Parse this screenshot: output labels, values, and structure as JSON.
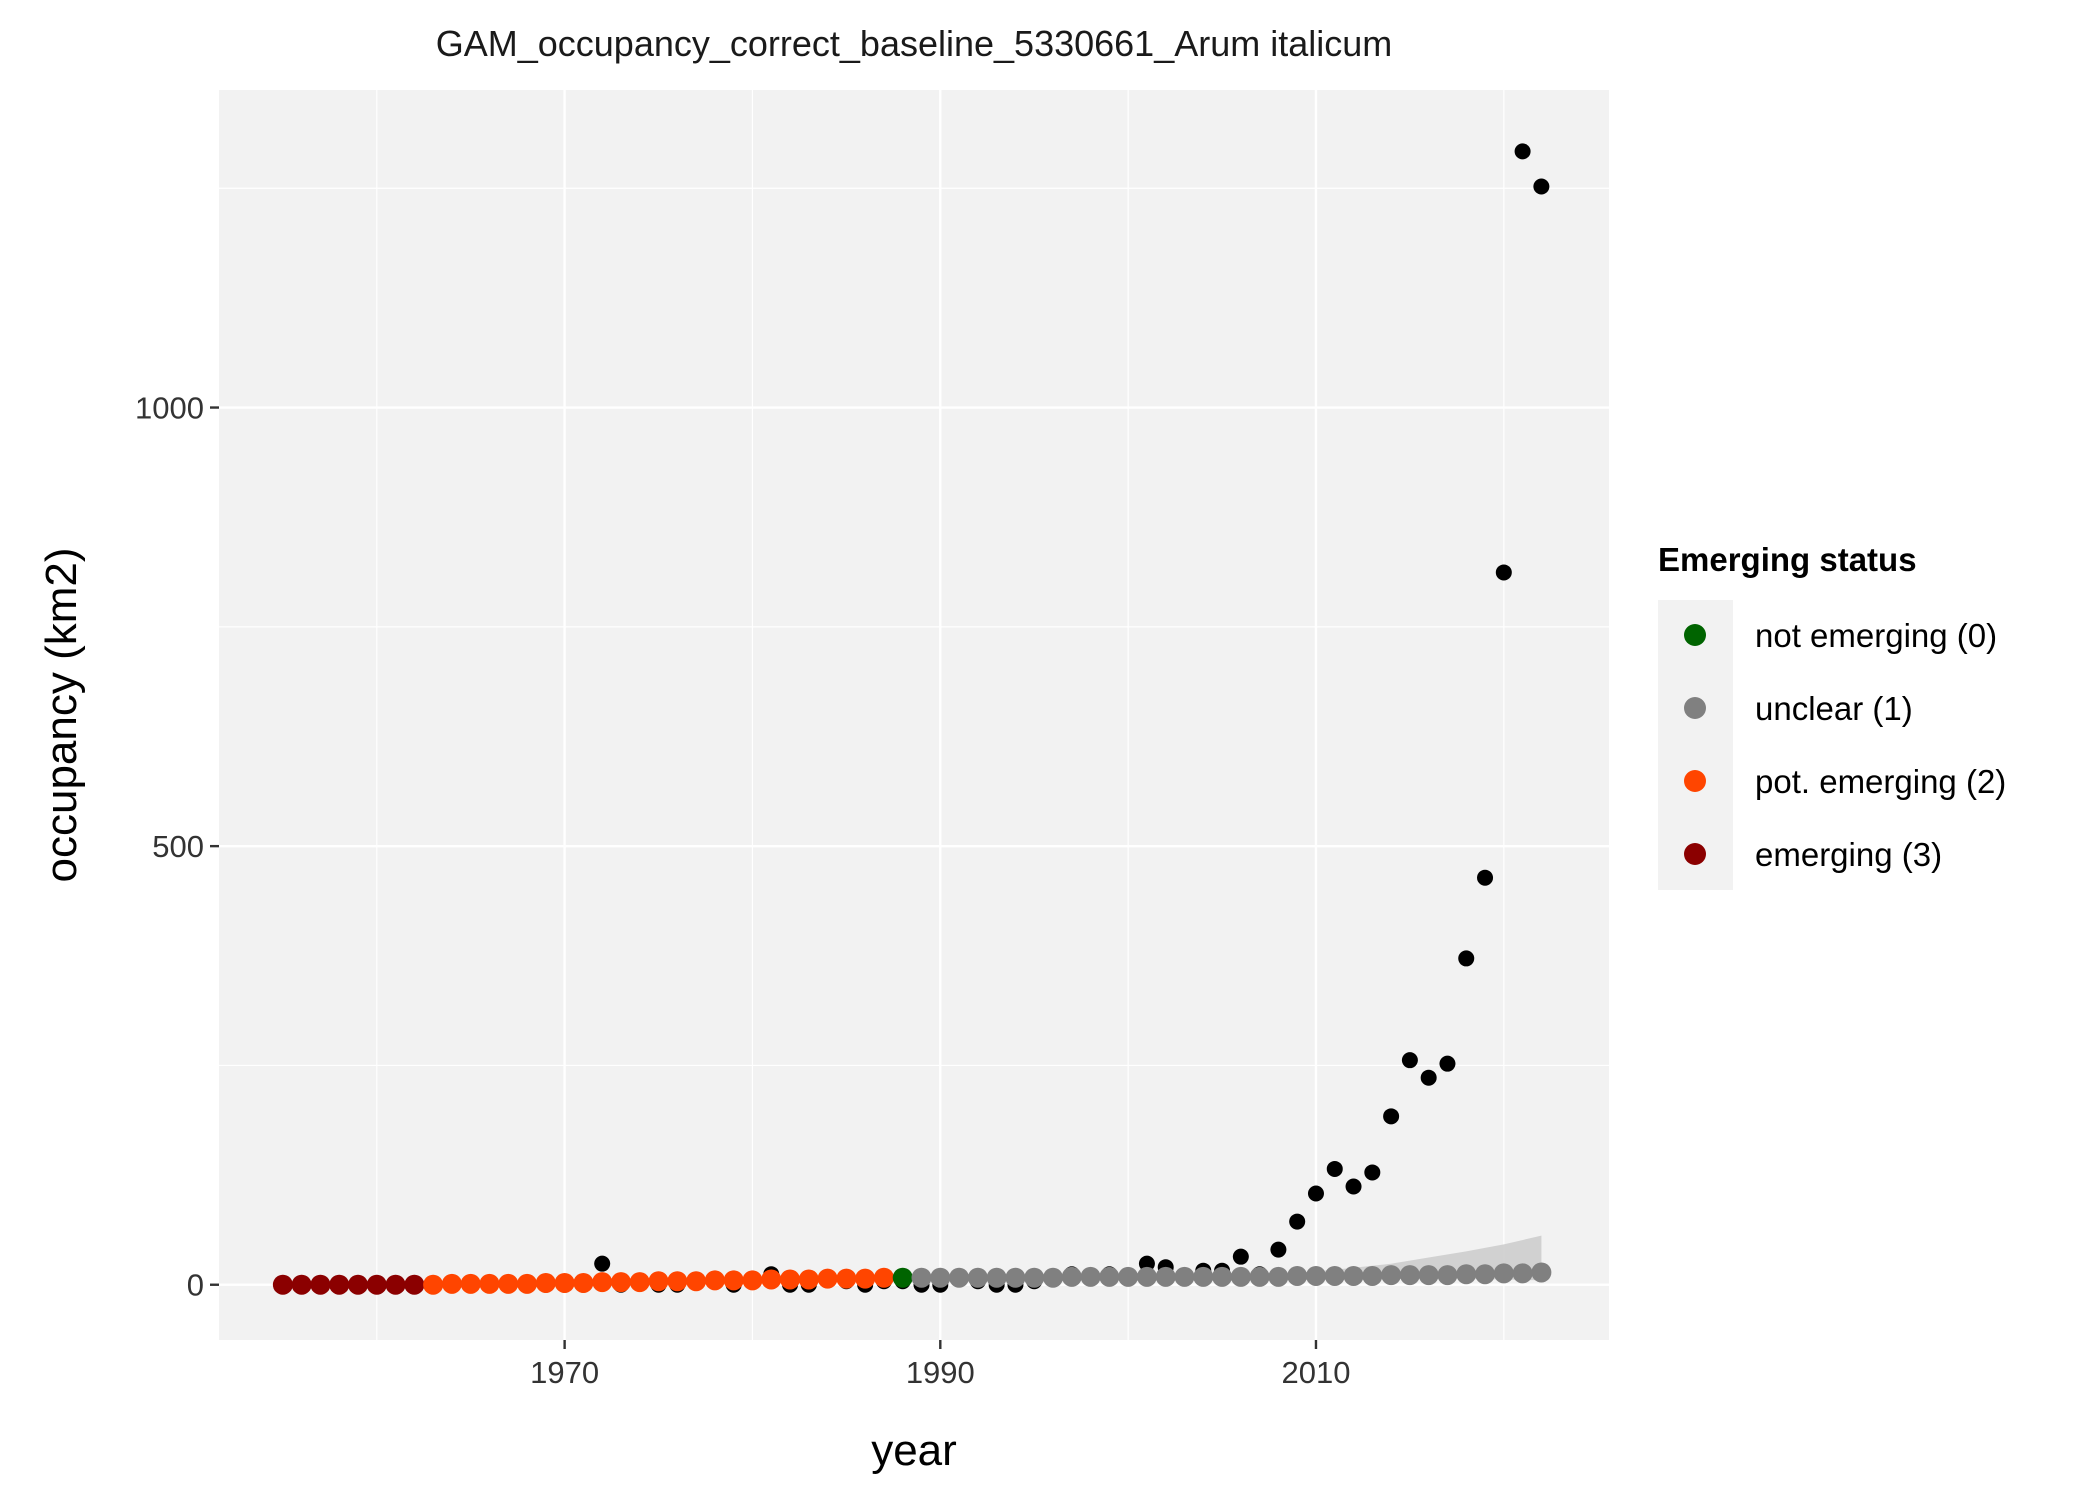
{
  "chart_data": {
    "type": "scatter",
    "title": "GAM_occupancy_correct_baseline_5330661_Arum italicum",
    "xlabel": "year",
    "ylabel": "occupancy (km2)",
    "xlim": [
      1951.6,
      2025.6
    ],
    "ylim": [
      -63,
      1362
    ],
    "x_ticks": [
      1970,
      1990,
      2010
    ],
    "y_ticks": [
      0,
      500,
      1000
    ],
    "grid": true,
    "legend": {
      "title": "Emerging status",
      "placement": "right",
      "entries": [
        {
          "label": "not emerging (0)",
          "color": "#006400"
        },
        {
          "label": "unclear (1)",
          "color": "#808080"
        },
        {
          "label": "pot. emerging (2)",
          "color": "#FF4500"
        },
        {
          "label": "emerging (3)",
          "color": "#8B0000"
        }
      ]
    },
    "observed": {
      "color": "#000000",
      "x": [
        1955,
        1956,
        1957,
        1958,
        1959,
        1960,
        1961,
        1962,
        1963,
        1964,
        1965,
        1966,
        1967,
        1968,
        1969,
        1970,
        1971,
        1972,
        1973,
        1974,
        1975,
        1976,
        1977,
        1978,
        1979,
        1980,
        1981,
        1982,
        1983,
        1984,
        1985,
        1986,
        1987,
        1988,
        1989,
        1990,
        1991,
        1992,
        1993,
        1994,
        1995,
        1996,
        1997,
        1998,
        1999,
        2000,
        2001,
        2002,
        2003,
        2004,
        2005,
        2006,
        2007,
        2008,
        2009,
        2010,
        2011,
        2012,
        2013,
        2014,
        2015,
        2016,
        2017,
        2018,
        2019,
        2020,
        2021,
        2022
      ],
      "y": [
        0,
        0,
        0,
        0,
        0,
        0,
        0,
        0,
        0,
        0,
        0,
        0,
        0,
        0,
        0,
        0,
        0,
        24,
        0,
        4,
        0,
        0,
        4,
        4,
        0,
        4,
        12,
        0,
        0,
        8,
        4,
        0,
        4,
        4,
        0,
        0,
        8,
        4,
        0,
        0,
        4,
        8,
        12,
        8,
        12,
        8,
        24,
        20,
        8,
        16,
        16,
        32,
        12,
        40,
        72,
        104,
        132,
        112,
        128,
        192,
        256,
        236,
        252,
        372,
        464,
        812,
        1292,
        1252
      ]
    },
    "fitted": {
      "x": [
        1955,
        1956,
        1957,
        1958,
        1959,
        1960,
        1961,
        1962,
        1963,
        1964,
        1965,
        1966,
        1967,
        1968,
        1969,
        1970,
        1971,
        1972,
        1973,
        1974,
        1975,
        1976,
        1977,
        1978,
        1979,
        1980,
        1981,
        1982,
        1983,
        1984,
        1985,
        1986,
        1987,
        1988,
        1989,
        1990,
        1991,
        1992,
        1993,
        1994,
        1995,
        1996,
        1997,
        1998,
        1999,
        2000,
        2001,
        2002,
        2003,
        2004,
        2005,
        2006,
        2007,
        2008,
        2009,
        2010,
        2011,
        2012,
        2013,
        2014,
        2015,
        2016,
        2017,
        2018,
        2019,
        2020,
        2021,
        2022
      ],
      "y": [
        0,
        0,
        0,
        0,
        0,
        0,
        0,
        0,
        0,
        1,
        1,
        1,
        1,
        1,
        2,
        2,
        2,
        3,
        3,
        3,
        4,
        4,
        4,
        5,
        5,
        5,
        6,
        6,
        6,
        7,
        7,
        7,
        8,
        8,
        8,
        8,
        8,
        8,
        8,
        8,
        8,
        8,
        9,
        9,
        9,
        9,
        9,
        9,
        9,
        9,
        9,
        9,
        9,
        9,
        10,
        10,
        10,
        10,
        10,
        11,
        11,
        11,
        11,
        12,
        12,
        13,
        13,
        14
      ],
      "status": [
        3,
        3,
        3,
        3,
        3,
        3,
        3,
        3,
        2,
        2,
        2,
        2,
        2,
        2,
        2,
        2,
        2,
        2,
        2,
        2,
        2,
        2,
        2,
        2,
        2,
        2,
        2,
        2,
        2,
        2,
        2,
        2,
        2,
        0,
        1,
        1,
        1,
        1,
        1,
        1,
        1,
        1,
        1,
        1,
        1,
        1,
        1,
        1,
        1,
        1,
        1,
        1,
        1,
        1,
        1,
        1,
        1,
        1,
        1,
        1,
        1,
        1,
        1,
        1,
        1,
        1,
        1,
        1
      ]
    },
    "ci_band": {
      "x": [
        2005,
        2008,
        2011,
        2014,
        2016,
        2018,
        2020,
        2022
      ],
      "lower": [
        9,
        9,
        9,
        8,
        8,
        7,
        6,
        5
      ],
      "upper": [
        10,
        12,
        17,
        24,
        31,
        38,
        46,
        56
      ]
    }
  }
}
